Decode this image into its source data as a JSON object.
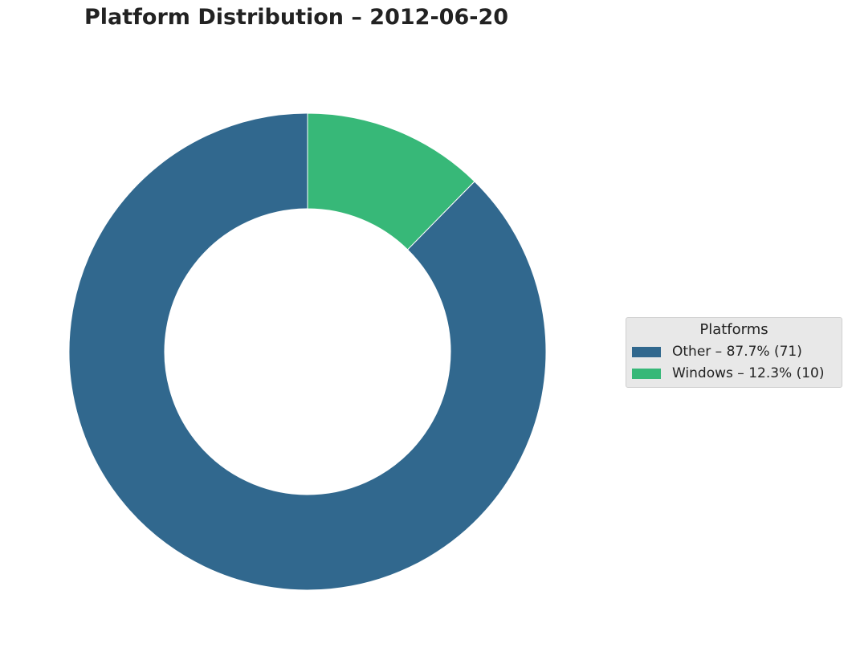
{
  "chart_data": {
    "type": "pie",
    "style": "donut",
    "title": "Platform Distribution – 2012-06-20",
    "start_angle": "top, clockwise",
    "legend": {
      "title": "Platforms",
      "placement": "right",
      "entries": [
        "Other – 87.7% (71)",
        "Windows – 12.3% (10)"
      ]
    },
    "series": [
      {
        "name": "Windows",
        "value": 10,
        "percent": 12.3,
        "color": "#37b878"
      },
      {
        "name": "Other",
        "value": 71,
        "percent": 87.7,
        "color": "#31688e"
      }
    ]
  }
}
